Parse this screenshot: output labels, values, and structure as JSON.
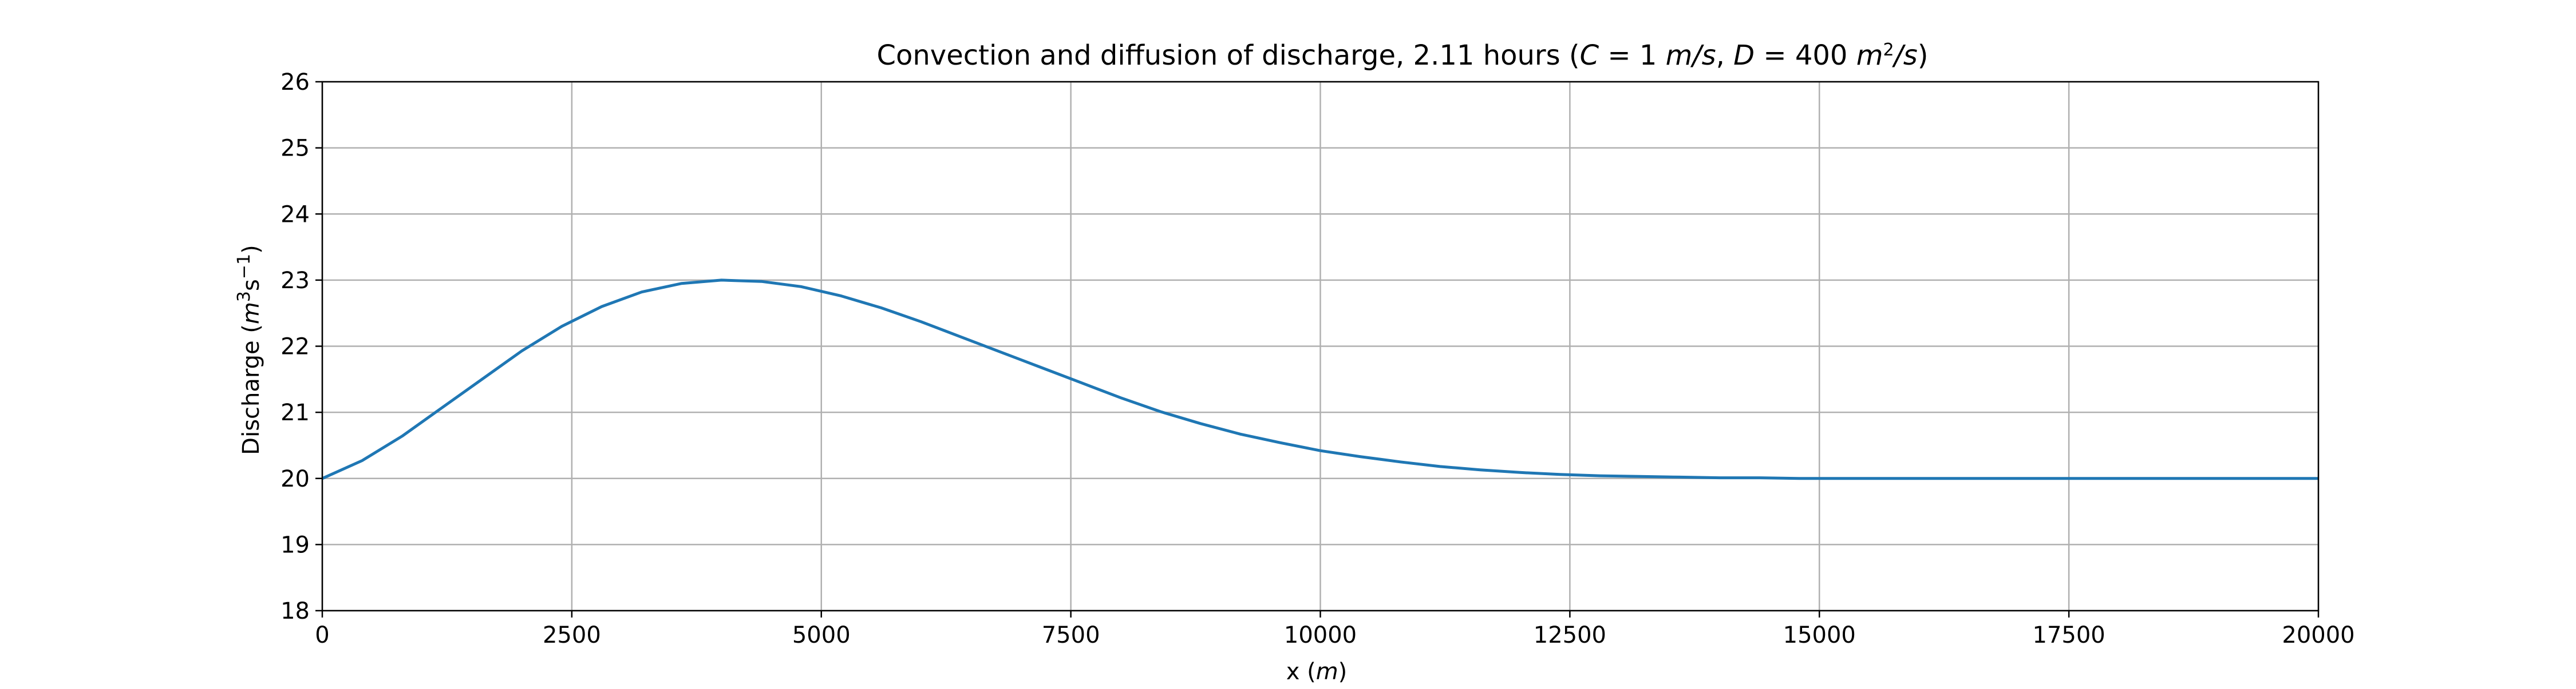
{
  "chart_data": {
    "type": "line",
    "title": "Convection and diffusion of discharge, 2.11 hours (C = 1 m/s, D = 400 m²/s)",
    "title_parts": {
      "lead": "Convection and diffusion of discharge, 2.11 hours (",
      "c_var": "C",
      "c_eq": " = 1 ",
      "c_unit": "m/s",
      "sep": ", ",
      "d_var": "D",
      "d_eq": " = 400 ",
      "d_unit_m": "m",
      "d_unit_exp": "2",
      "d_unit_s": "/s",
      "trail": ")"
    },
    "xlabel": "x (m)",
    "xlabel_parts": {
      "text": "x (",
      "unit": "m",
      "close": ")"
    },
    "ylabel": "Discharge (m³s⁻¹)",
    "ylabel_parts": {
      "text": "Discharge (",
      "m": "m",
      "exp3": "3",
      "s": "s",
      "expneg1": "−1",
      "close": ")"
    },
    "xlim": [
      0,
      20000
    ],
    "ylim": [
      18,
      26
    ],
    "x_ticks": [
      0,
      2500,
      5000,
      7500,
      10000,
      12500,
      15000,
      17500,
      20000
    ],
    "x_tick_labels": [
      "0",
      "2500",
      "5000",
      "7500",
      "10000",
      "12500",
      "15000",
      "17500",
      "20000"
    ],
    "y_ticks": [
      18,
      19,
      20,
      21,
      22,
      23,
      24,
      25,
      26
    ],
    "y_tick_labels": [
      "18",
      "19",
      "20",
      "21",
      "22",
      "23",
      "24",
      "25",
      "26"
    ],
    "grid": true,
    "series": [
      {
        "color": "#1f77b4",
        "x": [
          0,
          400,
          800,
          1200,
          1600,
          2000,
          2400,
          2800,
          3200,
          3600,
          4000,
          4400,
          4800,
          5200,
          5600,
          6000,
          6400,
          6800,
          7200,
          7600,
          8000,
          8400,
          8800,
          9200,
          9600,
          10000,
          10400,
          10800,
          11200,
          11600,
          12000,
          12400,
          12800,
          13200,
          13600,
          14000,
          14400,
          14800,
          15200,
          15600,
          16000,
          16400,
          16800,
          17200,
          17600,
          18000,
          18400,
          18800,
          19200,
          19600,
          20000
        ],
        "y": [
          20.0,
          20.27,
          20.64,
          21.07,
          21.5,
          21.93,
          22.3,
          22.6,
          22.82,
          22.95,
          23.0,
          22.98,
          22.9,
          22.76,
          22.58,
          22.37,
          22.14,
          21.91,
          21.68,
          21.45,
          21.22,
          21.01,
          20.83,
          20.67,
          20.54,
          20.42,
          20.33,
          20.25,
          20.18,
          20.13,
          20.09,
          20.06,
          20.04,
          20.03,
          20.02,
          20.01,
          20.01,
          20.0,
          20.0,
          20.0,
          20.0,
          20.0,
          20.0,
          20.0,
          20.0,
          20.0,
          20.0,
          20.0,
          20.0,
          20.0,
          20.0
        ]
      }
    ]
  }
}
